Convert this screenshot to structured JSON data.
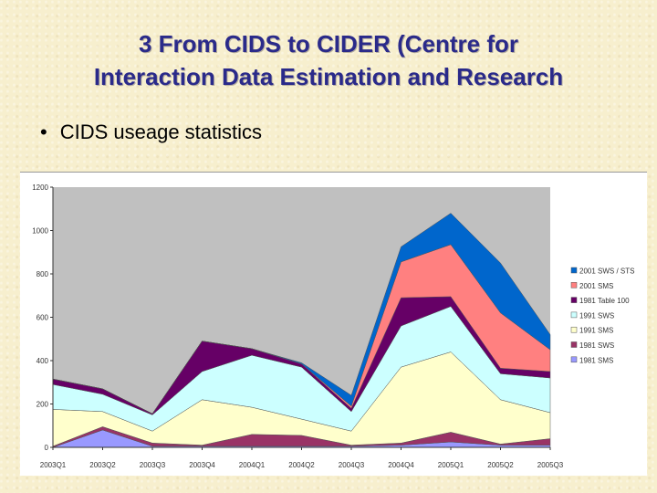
{
  "title": {
    "line1": "3 From CIDS to CIDER (Centre for",
    "line2": "Interaction Data Estimation and Research"
  },
  "bullet": {
    "text": "CIDS useage statistics"
  },
  "chart_data": {
    "type": "area",
    "stacked": true,
    "title": "",
    "xlabel": "",
    "ylabel": "",
    "ylim": [
      0,
      1200
    ],
    "yticks": [
      "0",
      "200",
      "400",
      "600",
      "800",
      "1000",
      "1200"
    ],
    "grid": false,
    "legend_position": "right",
    "plot_background": "#c0c0c0",
    "categories": [
      "2003Q1",
      "2003Q2",
      "2003Q3",
      "2003Q4",
      "2004Q1",
      "2004Q2",
      "2004Q3",
      "2004Q4",
      "2005Q1",
      "2005Q2",
      "2005Q3"
    ],
    "series": [
      {
        "name": "1981 SMS",
        "color": "#9999ff",
        "values": [
          0,
          80,
          5,
          5,
          5,
          5,
          5,
          10,
          25,
          10,
          10
        ]
      },
      {
        "name": "1981 SWS",
        "color": "#993366",
        "values": [
          5,
          15,
          15,
          5,
          55,
          50,
          5,
          10,
          45,
          5,
          30
        ]
      },
      {
        "name": "1991 SMS",
        "color": "#ffffcc",
        "values": [
          170,
          70,
          55,
          210,
          125,
          75,
          65,
          350,
          370,
          205,
          120
        ]
      },
      {
        "name": "1991 SWS",
        "color": "#ccffff",
        "values": [
          115,
          80,
          75,
          130,
          240,
          240,
          90,
          190,
          210,
          120,
          160
        ]
      },
      {
        "name": "1981 Table 100",
        "color": "#660066",
        "values": [
          25,
          25,
          5,
          140,
          30,
          15,
          15,
          130,
          45,
          25,
          30
        ]
      },
      {
        "name": "2001 SMS",
        "color": "#ff8080",
        "values": [
          0,
          0,
          0,
          0,
          0,
          0,
          10,
          165,
          240,
          255,
          100
        ]
      },
      {
        "name": "2001 SWS / STS",
        "color": "#0066cc",
        "values": [
          0,
          0,
          0,
          0,
          0,
          5,
          50,
          70,
          145,
          230,
          70
        ]
      }
    ]
  }
}
